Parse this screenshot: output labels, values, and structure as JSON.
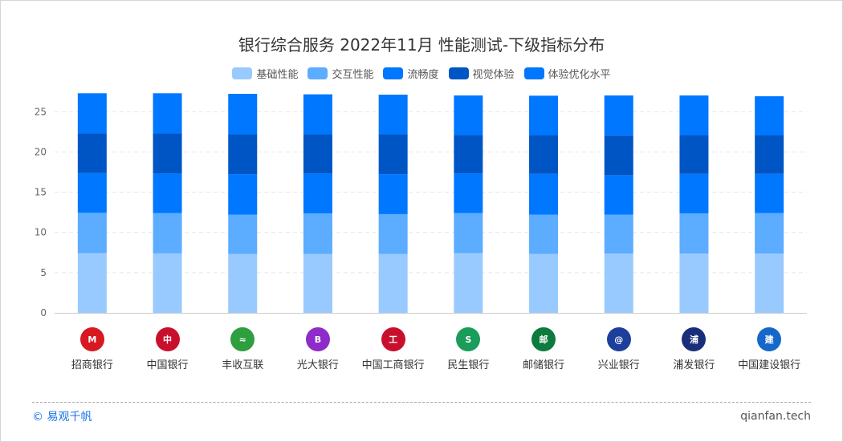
{
  "chart_data": {
    "type": "bar",
    "stacked": true,
    "title": "银行综合服务 2022年11月 性能测试-下级指标分布",
    "xlabel": "",
    "ylabel": "",
    "ylim": [
      0,
      28
    ],
    "yticks": [
      0,
      5,
      10,
      15,
      20,
      25
    ],
    "grid": true,
    "legend_position": "top-center",
    "categories": [
      "招商银行",
      "中国银行",
      "丰收互联",
      "光大银行",
      "中国工商银行",
      "民生银行",
      "邮储银行",
      "兴业银行",
      "浦发银行",
      "中国建设银行"
    ],
    "series": [
      {
        "name": "基础性能",
        "color": "#99CAFF",
        "values": [
          7.43,
          7.39,
          7.33,
          7.33,
          7.33,
          7.43,
          7.33,
          7.36,
          7.36,
          7.36
        ]
      },
      {
        "name": "交互性能",
        "color": "#5CACFF",
        "values": [
          5.0,
          5.01,
          4.87,
          5.04,
          4.94,
          4.97,
          4.87,
          4.84,
          5.01,
          5.04
        ]
      },
      {
        "name": "流畅度",
        "color": "#0077FF",
        "values": [
          4.94,
          4.91,
          5.04,
          4.94,
          4.97,
          4.94,
          5.07,
          4.91,
          4.9,
          4.87
        ]
      },
      {
        "name": "视觉体验",
        "color": "#0055C4",
        "values": [
          4.91,
          4.97,
          4.94,
          4.87,
          4.94,
          4.74,
          4.81,
          4.94,
          4.81,
          4.81
        ]
      },
      {
        "name": "体验优化水平",
        "color": "#0077FF",
        "values": [
          5.01,
          5.01,
          5.04,
          4.98,
          4.94,
          4.94,
          4.91,
          4.97,
          4.94,
          4.84
        ]
      }
    ]
  },
  "logos": [
    {
      "color": "#d71921",
      "glyph": "M"
    },
    {
      "color": "#c8102e",
      "glyph": "中"
    },
    {
      "color": "#2e9e3e",
      "glyph": "≈"
    },
    {
      "color": "#8e2bc9",
      "glyph": "B"
    },
    {
      "color": "#c8102e",
      "glyph": "工"
    },
    {
      "color": "#1a9c5a",
      "glyph": "S"
    },
    {
      "color": "#0d7a3e",
      "glyph": "邮"
    },
    {
      "color": "#1d3f9c",
      "glyph": "@"
    },
    {
      "color": "#1a2e7a",
      "glyph": "浦"
    },
    {
      "color": "#1568c9",
      "glyph": "建"
    }
  ],
  "footer": {
    "copyright": "© 易观千帆",
    "site": "qianfan.tech"
  }
}
